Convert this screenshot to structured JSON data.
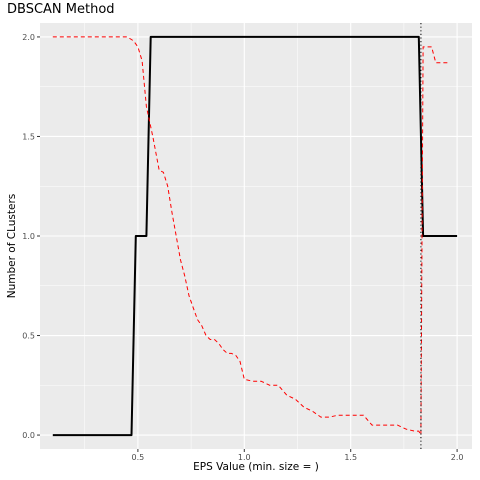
{
  "chart_data": {
    "type": "line",
    "title": "DBSCAN Method",
    "xlabel": "EPS Value (min. size = )",
    "ylabel": "Number of CLusters",
    "xlim": [
      0.04,
      2.07
    ],
    "ylim": [
      -0.07,
      2.07
    ],
    "x_ticks": [
      "0.5",
      "1.0",
      "1.5",
      "2.0"
    ],
    "x_tick_values": [
      0.5,
      1.0,
      1.5,
      2.0
    ],
    "y_ticks": [
      "0.0",
      "0.5",
      "1.0",
      "1.5",
      "2.0"
    ],
    "y_tick_values": [
      0.0,
      0.5,
      1.0,
      1.5,
      2.0
    ],
    "grid": true,
    "background": "#EBEBEB",
    "series": [
      {
        "style": "solid",
        "color": "#000000",
        "x": [
          0.1,
          0.47,
          0.49,
          0.54,
          0.56,
          0.57,
          1.82,
          1.84,
          1.85,
          2.0
        ],
        "y": [
          0.0,
          0.0,
          1.0,
          1.0,
          2.0,
          2.0,
          2.0,
          1.0,
          1.0,
          1.0
        ]
      },
      {
        "style": "dashed",
        "color": "#FF0000",
        "x": [
          0.1,
          0.45,
          0.48,
          0.5,
          0.52,
          0.54,
          0.57,
          0.6,
          0.62,
          0.64,
          0.66,
          0.68,
          0.7,
          0.72,
          0.74,
          0.76,
          0.78,
          0.8,
          0.82,
          0.84,
          0.86,
          0.88,
          0.9,
          0.92,
          0.94,
          0.96,
          0.98,
          1.0,
          1.04,
          1.08,
          1.12,
          1.16,
          1.2,
          1.24,
          1.28,
          1.32,
          1.36,
          1.4,
          1.44,
          1.48,
          1.52,
          1.56,
          1.6,
          1.64,
          1.68,
          1.72,
          1.76,
          1.8,
          1.82,
          1.83,
          1.84,
          1.86,
          1.88,
          1.9,
          1.92,
          1.94,
          1.96
        ],
        "y": [
          2.0,
          2.0,
          1.98,
          1.95,
          1.88,
          1.65,
          1.5,
          1.33,
          1.32,
          1.25,
          1.12,
          1.0,
          0.88,
          0.8,
          0.7,
          0.64,
          0.58,
          0.55,
          0.5,
          0.48,
          0.48,
          0.46,
          0.43,
          0.41,
          0.41,
          0.4,
          0.37,
          0.28,
          0.27,
          0.27,
          0.25,
          0.25,
          0.2,
          0.18,
          0.14,
          0.12,
          0.09,
          0.09,
          0.1,
          0.1,
          0.1,
          0.1,
          0.05,
          0.05,
          0.05,
          0.05,
          0.03,
          0.02,
          0.02,
          0.0,
          1.95,
          1.95,
          1.95,
          1.87,
          1.87,
          1.87,
          1.87
        ]
      }
    ],
    "vline": {
      "x": 1.83,
      "style": "dotted",
      "color": "#000000"
    }
  }
}
